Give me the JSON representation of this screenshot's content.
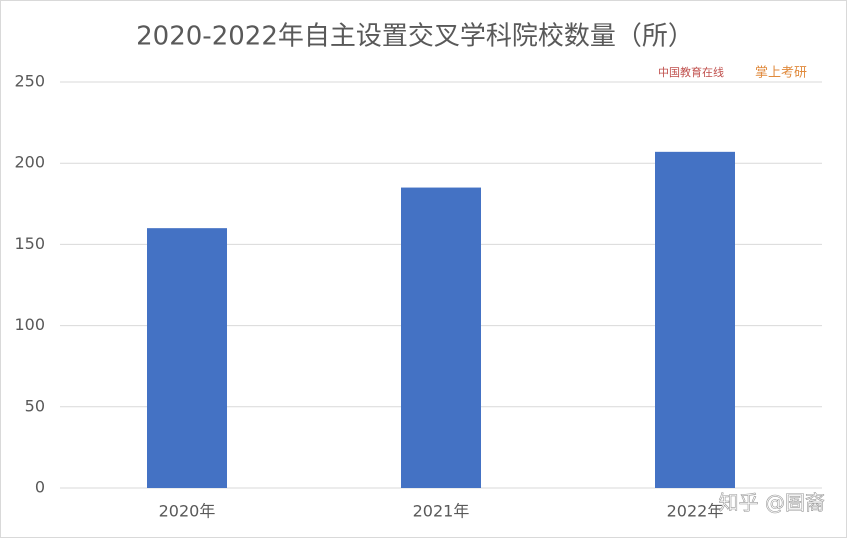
{
  "chart_data": {
    "type": "bar",
    "title": "2020-2022年自主设置交叉学科院校数量（所）",
    "categories": [
      "2020年",
      "2021年",
      "2022年"
    ],
    "values": [
      160,
      185,
      207
    ],
    "color": "#4472c4",
    "ylim": [
      0,
      250
    ],
    "yticks": [
      0,
      50,
      100,
      150,
      200,
      250
    ],
    "grid": true,
    "watermarks": [
      "中国教育在线",
      "掌上考研",
      "知乎 @圄裔"
    ]
  }
}
